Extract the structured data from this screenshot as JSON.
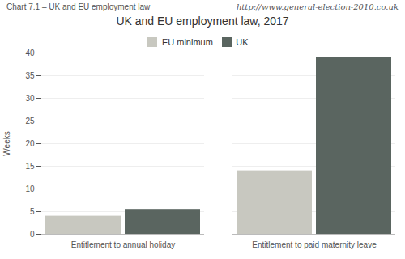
{
  "chart_data": {
    "type": "bar",
    "title": "UK and EU employment law, 2017",
    "annotations": [
      "Chart 7.1 – UK and EU employment law",
      "http://www.general-election-2010.co.uk"
    ],
    "categories": [
      "Entitlement to annual holiday",
      "Entitlement to paid maternity leave"
    ],
    "series": [
      {
        "name": "EU minimum",
        "color": "#c8c8c0",
        "values": [
          4,
          14
        ]
      },
      {
        "name": "UK",
        "color": "#5a6560",
        "values": [
          5.5,
          39
        ]
      }
    ],
    "ylabel": "Weeks",
    "ylim": [
      0,
      40
    ],
    "yticks": [
      0,
      5,
      10,
      15,
      20,
      25,
      30,
      35,
      40
    ],
    "grid": true,
    "legend": "top"
  }
}
